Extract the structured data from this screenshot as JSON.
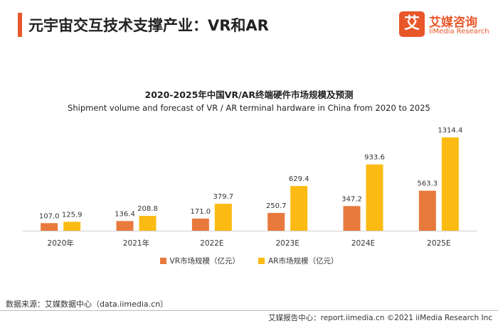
{
  "header": {
    "title": "元宇宙交互技术支撑产业：VR和AR",
    "logo_cn": "艾媒咨询",
    "logo_en": "iiMedia Research",
    "logo_mark": "艾",
    "accent_color": "#e8572a"
  },
  "chart_data": {
    "type": "bar",
    "title": "2020-2025年中国VR/AR终端硬件市场规模及预测",
    "subtitle": "Shipment volume and forecast of VR / AR terminal hardware in China from 2020 to 2025",
    "categories": [
      "2020年",
      "2021年",
      "2022E",
      "2023E",
      "2024E",
      "2025E"
    ],
    "series": [
      {
        "name": "VR市场规模（亿元）",
        "color": "#e8793c",
        "values": [
          107.0,
          136.4,
          171.0,
          250.7,
          347.2,
          563.3
        ]
      },
      {
        "name": "AR市场规模（亿元）",
        "color": "#fbbb13",
        "values": [
          125.9,
          208.8,
          379.7,
          629.4,
          933.6,
          1314.4
        ]
      }
    ],
    "ylim": [
      0,
      1400
    ],
    "grid": false,
    "legend_position": "bottom"
  },
  "footer": {
    "source": "数据来源：艾媒数据中心（data.iimedia.cn）",
    "report": "艾媒报告中心：report.iimedia.cn    ©2021  iiMedia Research  Inc"
  }
}
